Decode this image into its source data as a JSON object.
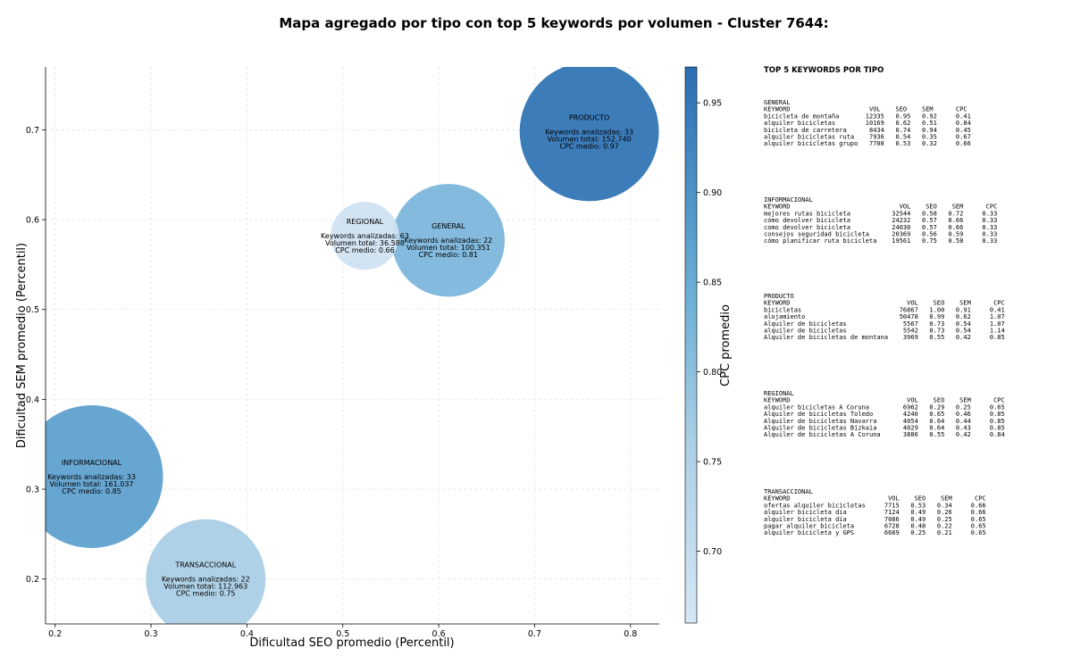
{
  "chart_data": {
    "type": "scatter",
    "title": "Mapa agregado por tipo con top 5 keywords por volumen - Cluster 7644:",
    "xlabel": "Dificultad SEO promedio (Percentil)",
    "ylabel": "Dificultad SEM promedio (Percentil)",
    "colorbar_label": "CPC promedio",
    "xlim": [
      0.19,
      0.83
    ],
    "ylim": [
      0.15,
      0.77
    ],
    "xticks": [
      "0.2",
      "0.3",
      "0.4",
      "0.5",
      "0.6",
      "0.7",
      "0.8"
    ],
    "yticks": [
      "0.2",
      "0.3",
      "0.4",
      "0.5",
      "0.6",
      "0.7"
    ],
    "colorbar_range": [
      0.66,
      0.97
    ],
    "colorbar_ticks": [
      "0.70",
      "0.75",
      "0.80",
      "0.85",
      "0.90",
      "0.95"
    ],
    "grid": true,
    "bubble_label_template": [
      "Keywords analizadas: ",
      "Volumen total: ",
      "CPC medio: "
    ],
    "points": [
      {
        "tipo": "GENERAL",
        "x": 0.61,
        "y": 0.577,
        "keywords": 22,
        "volumen": "100.351",
        "volumen_num": 100351,
        "cpc": "0.81",
        "cpc_num": 0.81,
        "color": "#7ab5da"
      },
      {
        "tipo": "INFORMACIONAL",
        "x": 0.238,
        "y": 0.314,
        "keywords": 33,
        "volumen": "161.037",
        "volumen_num": 161037,
        "cpc": "0.85",
        "cpc_num": 0.85,
        "color": "#5d9fcf"
      },
      {
        "tipo": "PRODUCTO",
        "x": 0.757,
        "y": 0.698,
        "keywords": 33,
        "volumen": "152.740",
        "volumen_num": 152740,
        "cpc": "0.97",
        "cpc_num": 0.97,
        "color": "#2d72b4"
      },
      {
        "tipo": "REGIONAL",
        "x": 0.523,
        "y": 0.582,
        "keywords": 63,
        "volumen": "36.588",
        "volumen_num": 36588,
        "cpc": "0.66",
        "cpc_num": 0.66,
        "color": "#cfe1f0"
      },
      {
        "tipo": "TRANSACCIONAL",
        "x": 0.357,
        "y": 0.2,
        "keywords": 22,
        "volumen": "112.963",
        "volumen_num": 112963,
        "cpc": "0.75",
        "cpc_num": 0.75,
        "color": "#a9cee5"
      }
    ]
  },
  "panel": {
    "title": "TOP 5 KEYWORDS POR TIPO",
    "groups": [
      {
        "name": "GENERAL",
        "header": "KEYWORD                     VOL    SEO    SEM      CPC",
        "rows": [
          "bicicleta de montaña       12335   0.95   0.92     0.41",
          "alquiler bicicletas        10169   0.62   0.51     0.84",
          "bicicleta de carretera      8434   0.74   0.94     0.45",
          "alquiler bicicletas ruta    7936   0.54   0.35     0.67",
          "alquiler bicicletas grupo   7708   0.53   0.32     0.66"
        ]
      },
      {
        "name": "INFORMACIONAL",
        "header": "KEYWORD                             VOL    SEO    SEM      CPC",
        "rows": [
          "mejores rutas bicicleta           32544   0.58   0.72     0.33",
          "cómo devolver bicicleta           24232   0.57   0.66     0.33",
          "como devolver bicicleta           24030   0.57   0.66     0.33",
          "consejos seguridad bicicleta      20369   0.56   0.59     0.33",
          "cómo planificar ruta bicicleta    19561   0.75   0.58     0.33"
        ]
      },
      {
        "name": "PRODUCTO",
        "header": "KEYWORD                               VOL    SEO    SEM      CPC",
        "rows": [
          "bicicletas                          76867   1.00   0.91     0.41",
          "alojamiento                         50478   0.99   0.62     1.07",
          "Alquiler de bicicletas               5567   0.73   0.54     1.07",
          "alquiler de bicicletas               5542   0.73   0.54     1.14",
          "Alquiler de bicicletas de montana    3969   0.55   0.42     0.85"
        ]
      },
      {
        "name": "REGIONAL",
        "header": "KEYWORD                               VOL    SEO    SEM      CPC",
        "rows": [
          "alquiler bicicletas A Coruna         6962   0.29   0.25     0.65",
          "Alquiler de bicicletas Toledo        4240   0.65   0.46     0.85",
          "Alquiler de bicicletas Navarra       4054   0.64   0.44     0.85",
          "Alquiler de bicicletas Bizkaia       4029   0.64   0.43     0.85",
          "Alquiler de bicicletas A Coruna      3886   0.55   0.42     0.84"
        ]
      },
      {
        "name": "TRANSACCIONAL",
        "header": "KEYWORD                          VOL    SEO    SEM      CPC",
        "rows": [
          "ofertas alquiler bicicletas     7715   0.53   0.34     0.66",
          "alquiler bicicleta dia          7124   0.49   0.26     0.66",
          "alquiler bicicleta día          7086   0.49   0.25     0.65",
          "pagar alquiler bicicleta        6728   0.48   0.22     0.65",
          "alquiler bicicleta y GPS        6689   0.25   0.21     0.65"
        ]
      }
    ]
  }
}
